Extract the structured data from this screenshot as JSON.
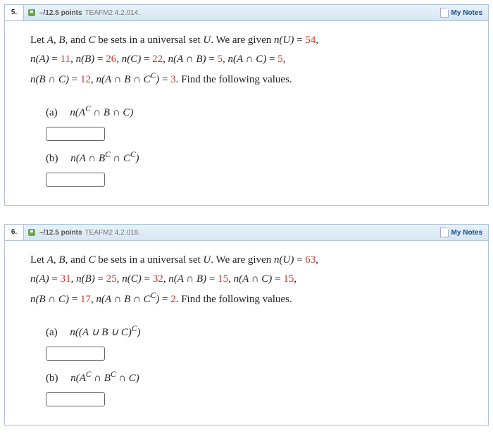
{
  "questions": [
    {
      "number": "5.",
      "points": "–/12.5 points",
      "ref": "TEAFM2 4.2.014.",
      "mynotes": "My Notes",
      "given": {
        "nU": "54",
        "nA": "11",
        "nB": "26",
        "nC": "22",
        "nAB": "5",
        "nAC": "5",
        "nBC": "12",
        "nABCc": "3"
      },
      "intro1a": "Let ",
      "intro1b": ", and ",
      "intro1c": " be sets in a universal set ",
      "intro1d": ". We are given ",
      "find": ". Find the following values.",
      "parts": [
        {
          "label": "(a)",
          "exprPrefix": "n",
          "expr": "(Aᶜ ∩ B ∩ C)"
        },
        {
          "label": "(b)",
          "exprPrefix": "n",
          "expr": "(A ∩ Bᶜ ∩ Cᶜ)"
        }
      ]
    },
    {
      "number": "6.",
      "points": "–/12.5 points",
      "ref": "TEAFM2 4.2.018.",
      "mynotes": "My Notes",
      "given": {
        "nU": "63",
        "nA": "31",
        "nB": "25",
        "nC": "32",
        "nAB": "15",
        "nAC": "15",
        "nBC": "17",
        "nABCc": "2"
      },
      "intro1a": "Let ",
      "intro1b": ", and ",
      "intro1c": " be sets in a universal set ",
      "intro1d": ". We are given ",
      "find": ". Find the following values.",
      "parts": [
        {
          "label": "(a)",
          "exprPrefix": "n",
          "expr": "((A ∪ B ∪ C)ᶜ)"
        },
        {
          "label": "(b)",
          "exprPrefix": "n",
          "expr": "(Aᶜ ∩ Bᶜ ∩ C)"
        }
      ]
    }
  ],
  "labels": {
    "A": "A",
    "B": "B",
    "C": "C",
    "U": "U",
    "nU": "n(U)",
    "nA": "n(A)",
    "nB": "n(B)",
    "nC": "n(C)",
    "nAB": "n(A ∩ B)",
    "nAC": "n(A ∩ C)",
    "nBC": "n(B ∩ C)",
    "nABCc_pre": "n(A ∩ B ∩ C",
    "nABCc_sup": "C",
    "nABCc_post": ")",
    "eq": " = "
  },
  "colors": {
    "value": "#c0392b",
    "header_bg_top": "#e8f2f8",
    "header_bg_bot": "#d6e6f2",
    "border": "#b0c4d8",
    "link": "#1a4f8a"
  }
}
